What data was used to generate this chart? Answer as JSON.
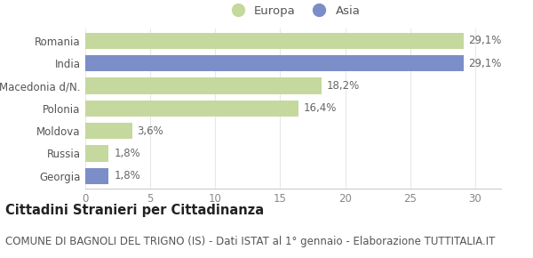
{
  "categories": [
    "Romania",
    "India",
    "Macedonia d/N.",
    "Polonia",
    "Moldova",
    "Russia",
    "Georgia"
  ],
  "values": [
    29.1,
    29.1,
    18.2,
    16.4,
    3.6,
    1.8,
    1.8
  ],
  "labels": [
    "29,1%",
    "29,1%",
    "18,2%",
    "16,4%",
    "3,6%",
    "1,8%",
    "1,8%"
  ],
  "colors": [
    "#c5d89d",
    "#7b8ec8",
    "#c5d89d",
    "#c5d89d",
    "#c5d89d",
    "#c5d89d",
    "#7b8ec8"
  ],
  "europa_color": "#c5d89d",
  "asia_color": "#7b8ec8",
  "title": "Cittadini Stranieri per Cittadinanza",
  "subtitle": "COMUNE DI BAGNOLI DEL TRIGNO (IS) - Dati ISTAT al 1° gennaio - Elaborazione TUTTITALIA.IT",
  "xlim": [
    0,
    32
  ],
  "xticks": [
    0,
    5,
    10,
    15,
    20,
    25,
    30
  ],
  "background_color": "#ffffff",
  "bar_height": 0.72,
  "title_fontsize": 10.5,
  "subtitle_fontsize": 8.5,
  "label_fontsize": 8.5,
  "ytick_fontsize": 8.5,
  "xtick_fontsize": 8.5,
  "legend_fontsize": 9.5
}
